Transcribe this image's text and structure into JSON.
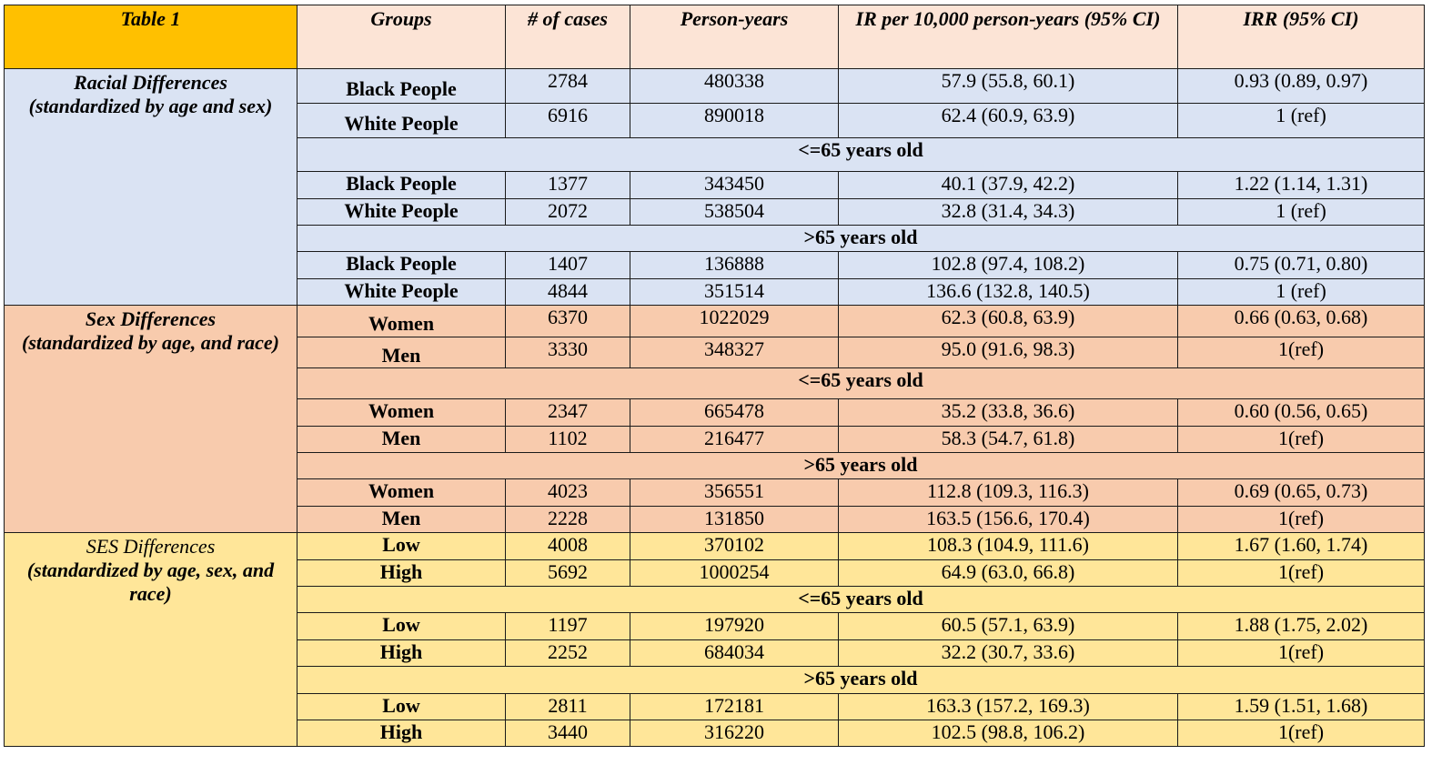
{
  "headers": {
    "table_label": "Table 1",
    "groups": "Groups",
    "cases": "# of cases",
    "person_years": "Person-years",
    "ir": "IR per 10,000 person-years (95% CI)",
    "irr": "IRR (95% CI)"
  },
  "sections": [
    {
      "label_line1": "Racial Differences",
      "label_line2": "(standardized by age and sex)",
      "color": "#dae3f3",
      "overall": [
        {
          "group": "Black People",
          "cases": "2784",
          "py": "480338",
          "ir": "57.9 (55.8, 60.1)",
          "irr": "0.93 (0.89, 0.97)"
        },
        {
          "group": "White People",
          "cases": "6916",
          "py": "890018",
          "ir": "62.4 (60.9, 63.9)",
          "irr": "1 (ref)"
        }
      ],
      "young_label": "<=65 years old",
      "young": [
        {
          "group": "Black People",
          "cases": "1377",
          "py": "343450",
          "ir": "40.1 (37.9, 42.2)",
          "irr": "1.22 (1.14, 1.31)"
        },
        {
          "group": "White People",
          "cases": "2072",
          "py": "538504",
          "ir": "32.8 (31.4, 34.3)",
          "irr": "1 (ref)"
        }
      ],
      "old_label": ">65 years old",
      "old": [
        {
          "group": "Black People",
          "cases": "1407",
          "py": "136888",
          "ir": "102.8 (97.4, 108.2)",
          "irr": "0.75 (0.71, 0.80)"
        },
        {
          "group": "White People",
          "cases": "4844",
          "py": "351514",
          "ir": "136.6 (132.8, 140.5)",
          "irr": "1 (ref)"
        }
      ]
    },
    {
      "label_line1": "Sex Differences",
      "label_line2": "(standardized by age, and race)",
      "color": "#f8cbad",
      "overall": [
        {
          "group": "Women",
          "cases": "6370",
          "py": "1022029",
          "ir": "62.3 (60.8, 63.9)",
          "irr": "0.66 (0.63, 0.68)"
        },
        {
          "group": "Men",
          "cases": "3330",
          "py": "348327",
          "ir": "95.0 (91.6, 98.3)",
          "irr": "1(ref)"
        }
      ],
      "young_label": "<=65 years old",
      "young": [
        {
          "group": "Women",
          "cases": "2347",
          "py": "665478",
          "ir": "35.2 (33.8, 36.6)",
          "irr": "0.60 (0.56, 0.65)"
        },
        {
          "group": "Men",
          "cases": "1102",
          "py": "216477",
          "ir": "58.3 (54.7, 61.8)",
          "irr": "1(ref)"
        }
      ],
      "old_label": ">65 years old",
      "old": [
        {
          "group": "Women",
          "cases": "4023",
          "py": "356551",
          "ir": "112.8 (109.3, 116.3)",
          "irr": "0.69 (0.65, 0.73)"
        },
        {
          "group": "Men",
          "cases": "2228",
          "py": "131850",
          "ir": "163.5 (156.6, 170.4)",
          "irr": "1(ref)"
        }
      ]
    },
    {
      "label_line1": "SES Differences",
      "label_line2": "(standardized by age, sex, and race)",
      "color": "#ffe699",
      "overall": [
        {
          "group": "Low",
          "cases": "4008",
          "py": "370102",
          "ir": "108.3 (104.9, 111.6)",
          "irr": "1.67 (1.60, 1.74)"
        },
        {
          "group": "High",
          "cases": "5692",
          "py": "1000254",
          "ir": "64.9 (63.0, 66.8)",
          "irr": "1(ref)"
        }
      ],
      "young_label": "<=65 years old",
      "young": [
        {
          "group": "Low",
          "cases": "1197",
          "py": "197920",
          "ir": "60.5 (57.1, 63.9)",
          "irr": "1.88 (1.75, 2.02)"
        },
        {
          "group": "High",
          "cases": "2252",
          "py": "684034",
          "ir": "32.2 (30.7, 33.6)",
          "irr": "1(ref)"
        }
      ],
      "old_label": ">65 years old",
      "old": [
        {
          "group": "Low",
          "cases": "2811",
          "py": "172181",
          "ir": "163.3 (157.2, 169.3)",
          "irr": "1.59 (1.51, 1.68)"
        },
        {
          "group": "High",
          "cases": "3440",
          "py": "316220",
          "ir": "102.5 (98.8, 106.2)",
          "irr": "1(ref)"
        }
      ]
    }
  ]
}
